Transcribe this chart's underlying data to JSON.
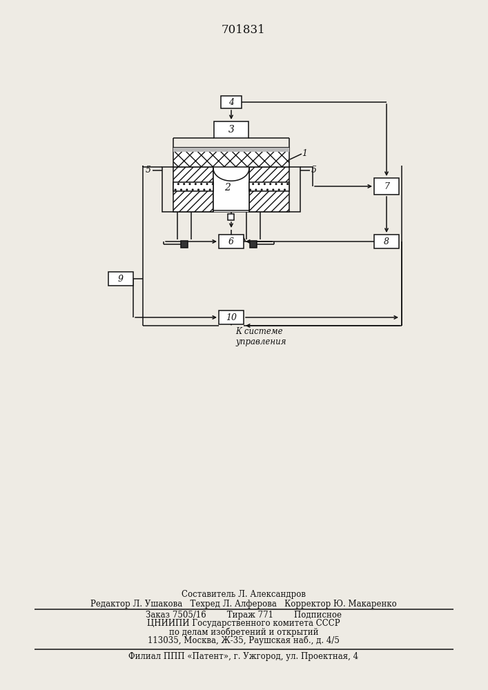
{
  "bg_color": "#eeebe4",
  "line_color": "#111111",
  "title": "701831",
  "footer_line1": "Составитель Л. Александров",
  "footer_line2": "Редактор Л. Ушакова   Техред Л. Алферова   Корректор Ю. Макаренко",
  "footer_line3": "Заказ 7505/16        Тираж 771        Подписное",
  "footer_line4": "ЦНИИПИ Государственного комитета СССР",
  "footer_line5": "по делам изобретений и открытий",
  "footer_line6": "113035, Москва, Ж-35, Раушская наб., д. 4/5",
  "footer_line7": "Филиал ППП «Патент», г. Ужгород, ул. Проектная, 4",
  "sys_text": "К системе\nуправления"
}
